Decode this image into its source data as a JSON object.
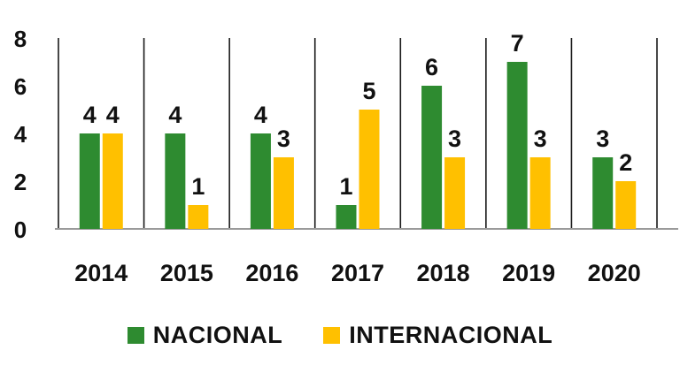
{
  "chart_data": {
    "type": "bar",
    "categories": [
      "2014",
      "2015",
      "2016",
      "2017",
      "2018",
      "2019",
      "2020"
    ],
    "series": [
      {
        "name": "NACIONAL",
        "values": [
          4,
          4,
          4,
          1,
          6,
          7,
          3
        ],
        "color": "#2e8b30"
      },
      {
        "name": "INTERNACIONAL",
        "values": [
          4,
          1,
          3,
          5,
          3,
          3,
          2
        ],
        "color": "#ffc000"
      }
    ],
    "yticks": [
      "0",
      "2",
      "4",
      "6",
      "8"
    ],
    "ylim": [
      0,
      8
    ],
    "grid": false,
    "vertical_separators": true,
    "data_labels": true,
    "legend_position": "bottom"
  }
}
